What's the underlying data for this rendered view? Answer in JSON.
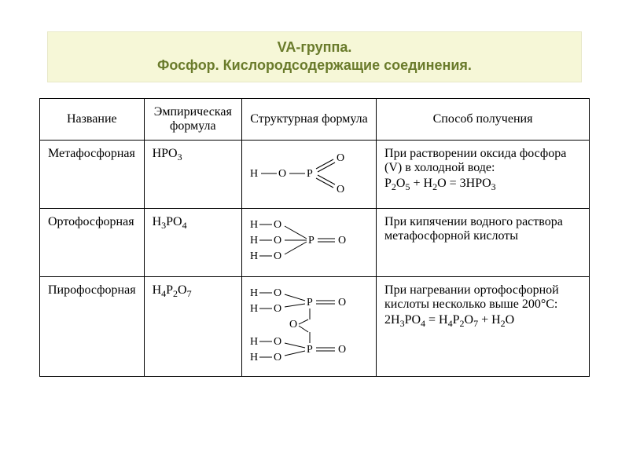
{
  "title": {
    "line1": "VA-группа.",
    "line2": "Фосфор. Кислородсодержащие соединения.",
    "bg_color": "#f6f7d7",
    "text_color": "#6a7b2b",
    "fontsize": 18
  },
  "table": {
    "columns": [
      {
        "key": "name",
        "label": "Название",
        "width_pct": 15
      },
      {
        "key": "emp",
        "label": "Эмпирическая формула",
        "width_pct": 18
      },
      {
        "key": "struct",
        "label": "Структурная формула",
        "width_pct": 22
      },
      {
        "key": "method",
        "label": "Способ получения",
        "width_pct": 45
      }
    ],
    "border_color": "#000000",
    "fontsize": 16,
    "font_family": "Times New Roman",
    "rows": [
      {
        "name": "Метафосфорная",
        "emp_formula": {
          "parts": [
            "HPO",
            {
              "sub": "3"
            }
          ]
        },
        "struct": {
          "type": "metaphosphoric",
          "stroke": "#000000",
          "fontsize": 14,
          "atoms": {
            "H": "H",
            "O": "O",
            "P": "P"
          }
        },
        "method": {
          "text": "При растворении оксида фосфора (V) в холодной воде:",
          "equation": {
            "parts": [
              "P",
              {
                "sub": "2"
              },
              "O",
              {
                "sub": "5"
              },
              " + H",
              {
                "sub": "2"
              },
              "O = 3HPO",
              {
                "sub": "3"
              }
            ]
          }
        }
      },
      {
        "name": "Ортофосфорная",
        "emp_formula": {
          "parts": [
            "H",
            {
              "sub": "3"
            },
            "PO",
            {
              "sub": "4"
            }
          ]
        },
        "struct": {
          "type": "orthophosphoric",
          "stroke": "#000000",
          "fontsize": 14,
          "atoms": {
            "H": "H",
            "O": "O",
            "P": "P"
          }
        },
        "method": {
          "text": "При кипячении водного раствора метафосфорной кислоты",
          "equation": null
        }
      },
      {
        "name": "Пирофосфорная",
        "emp_formula": {
          "parts": [
            "H",
            {
              "sub": "4"
            },
            "P",
            {
              "sub": "2"
            },
            "O",
            {
              "sub": "7"
            }
          ]
        },
        "struct": {
          "type": "pyrophosphoric",
          "stroke": "#000000",
          "fontsize": 14,
          "atoms": {
            "H": "H",
            "O": "O",
            "P": "P"
          }
        },
        "method": {
          "text": "При нагревании ортофосфорной кислоты несколько выше 200°С:",
          "equation": {
            "parts": [
              "2H",
              {
                "sub": "3"
              },
              "PO",
              {
                "sub": "4"
              },
              " = H",
              {
                "sub": "4"
              },
              "P",
              {
                "sub": "2"
              },
              "O",
              {
                "sub": "7"
              },
              " + H",
              {
                "sub": "2"
              },
              "O"
            ]
          }
        }
      }
    ]
  }
}
